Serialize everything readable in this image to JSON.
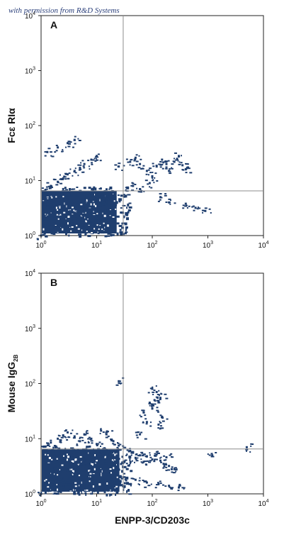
{
  "watermark": "with permission from R&D Systems",
  "chart_data": [
    {
      "type": "scatter",
      "panel_label": "A",
      "ylabel": "Fcε RIα",
      "xlabel": "",
      "x_scale": "log",
      "y_scale": "log",
      "xlim": [
        1,
        10000
      ],
      "ylim": [
        1,
        10000
      ],
      "quadrant_gates": {
        "x": 30,
        "y": 6.5
      },
      "tick_labels": {
        "base": "10",
        "exponents": [
          "0",
          "1",
          "2",
          "3",
          "4"
        ]
      },
      "points": [
        [
          1.0,
          1.0
        ],
        [
          1.5,
          1.3
        ],
        [
          2,
          1.6
        ],
        [
          3,
          2
        ],
        [
          4,
          2.6
        ],
        [
          5,
          3.2
        ],
        [
          6,
          4
        ],
        [
          7,
          4.8
        ],
        [
          8,
          5.5
        ],
        [
          10,
          6
        ],
        [
          12,
          5
        ],
        [
          15,
          4.2
        ],
        [
          18,
          3.5
        ],
        [
          20,
          2.8
        ],
        [
          1.2,
          6.8
        ],
        [
          1.5,
          8
        ],
        [
          2,
          9.5
        ],
        [
          2.5,
          11
        ],
        [
          3,
          13
        ],
        [
          4,
          15
        ],
        [
          5,
          17
        ],
        [
          6,
          20
        ],
        [
          8,
          24
        ],
        [
          10,
          28
        ],
        [
          1.3,
          33
        ],
        [
          2,
          40
        ],
        [
          3,
          48
        ],
        [
          4,
          55
        ],
        [
          25,
          18
        ],
        [
          40,
          22
        ],
        [
          50,
          26
        ],
        [
          60,
          20
        ],
        [
          80,
          15
        ],
        [
          100,
          12
        ],
        [
          120,
          18
        ],
        [
          150,
          24
        ],
        [
          180,
          20
        ],
        [
          200,
          15
        ],
        [
          250,
          22
        ],
        [
          300,
          28
        ],
        [
          350,
          19
        ],
        [
          400,
          16
        ],
        [
          45,
          8
        ],
        [
          60,
          7
        ],
        [
          90,
          9
        ],
        [
          140,
          5
        ],
        [
          200,
          4
        ],
        [
          400,
          3.8
        ],
        [
          600,
          3.2
        ],
        [
          900,
          2.8
        ]
      ],
      "density_regions": [
        {
          "x_range": [
            1,
            25
          ],
          "y_range": [
            1,
            7
          ]
        }
      ]
    },
    {
      "type": "scatter",
      "panel_label": "B",
      "ylabel": "Mouse IgG",
      "ylabel_sub": "2B",
      "xlabel": "ENPP-3/CD203c",
      "x_scale": "log",
      "y_scale": "log",
      "xlim": [
        1,
        10000
      ],
      "ylim": [
        1,
        10000
      ],
      "quadrant_gates": {
        "x": 30,
        "y": 6.5
      },
      "tick_labels": {
        "base": "10",
        "exponents": [
          "0",
          "1",
          "2",
          "3",
          "4"
        ]
      },
      "points": [
        [
          1.0,
          1.0
        ],
        [
          1.5,
          1.4
        ],
        [
          2,
          1.8
        ],
        [
          3,
          2.3
        ],
        [
          4,
          2.8
        ],
        [
          5,
          3.3
        ],
        [
          6,
          3.8
        ],
        [
          8,
          4.5
        ],
        [
          10,
          5
        ],
        [
          12,
          5.8
        ],
        [
          15,
          6.2
        ],
        [
          18,
          5.5
        ],
        [
          20,
          4.6
        ],
        [
          22,
          3.6
        ],
        [
          25,
          2.8
        ],
        [
          1.2,
          7.2
        ],
        [
          1.5,
          8.5
        ],
        [
          2,
          10
        ],
        [
          2.5,
          11.5
        ],
        [
          3,
          13
        ],
        [
          4,
          11
        ],
        [
          5,
          9
        ],
        [
          6,
          12
        ],
        [
          8,
          10
        ],
        [
          10,
          8
        ],
        [
          12,
          14
        ],
        [
          15,
          12
        ],
        [
          20,
          9
        ],
        [
          25,
          7.5
        ],
        [
          40,
          6
        ],
        [
          50,
          4.5
        ],
        [
          60,
          5
        ],
        [
          70,
          3.8
        ],
        [
          80,
          4.8
        ],
        [
          100,
          4.2
        ],
        [
          120,
          5.2
        ],
        [
          140,
          4
        ],
        [
          160,
          3.5
        ],
        [
          180,
          4.6
        ],
        [
          200,
          3.2
        ],
        [
          250,
          2.8
        ],
        [
          30,
          2
        ],
        [
          50,
          1.8
        ],
        [
          80,
          1.6
        ],
        [
          130,
          1.5
        ],
        [
          200,
          1.4
        ],
        [
          300,
          1.3
        ],
        [
          60,
          12
        ],
        [
          80,
          20
        ],
        [
          100,
          35
        ],
        [
          110,
          50
        ],
        [
          120,
          70
        ],
        [
          90,
          45
        ],
        [
          70,
          30
        ],
        [
          130,
          18
        ],
        [
          150,
          25
        ],
        [
          140,
          55
        ],
        [
          100,
          80
        ],
        [
          1200,
          5
        ],
        [
          5000,
          7
        ],
        [
          25,
          110
        ]
      ],
      "density_regions": [
        {
          "x_range": [
            1,
            28
          ],
          "y_range": [
            1,
            7
          ]
        }
      ]
    }
  ]
}
